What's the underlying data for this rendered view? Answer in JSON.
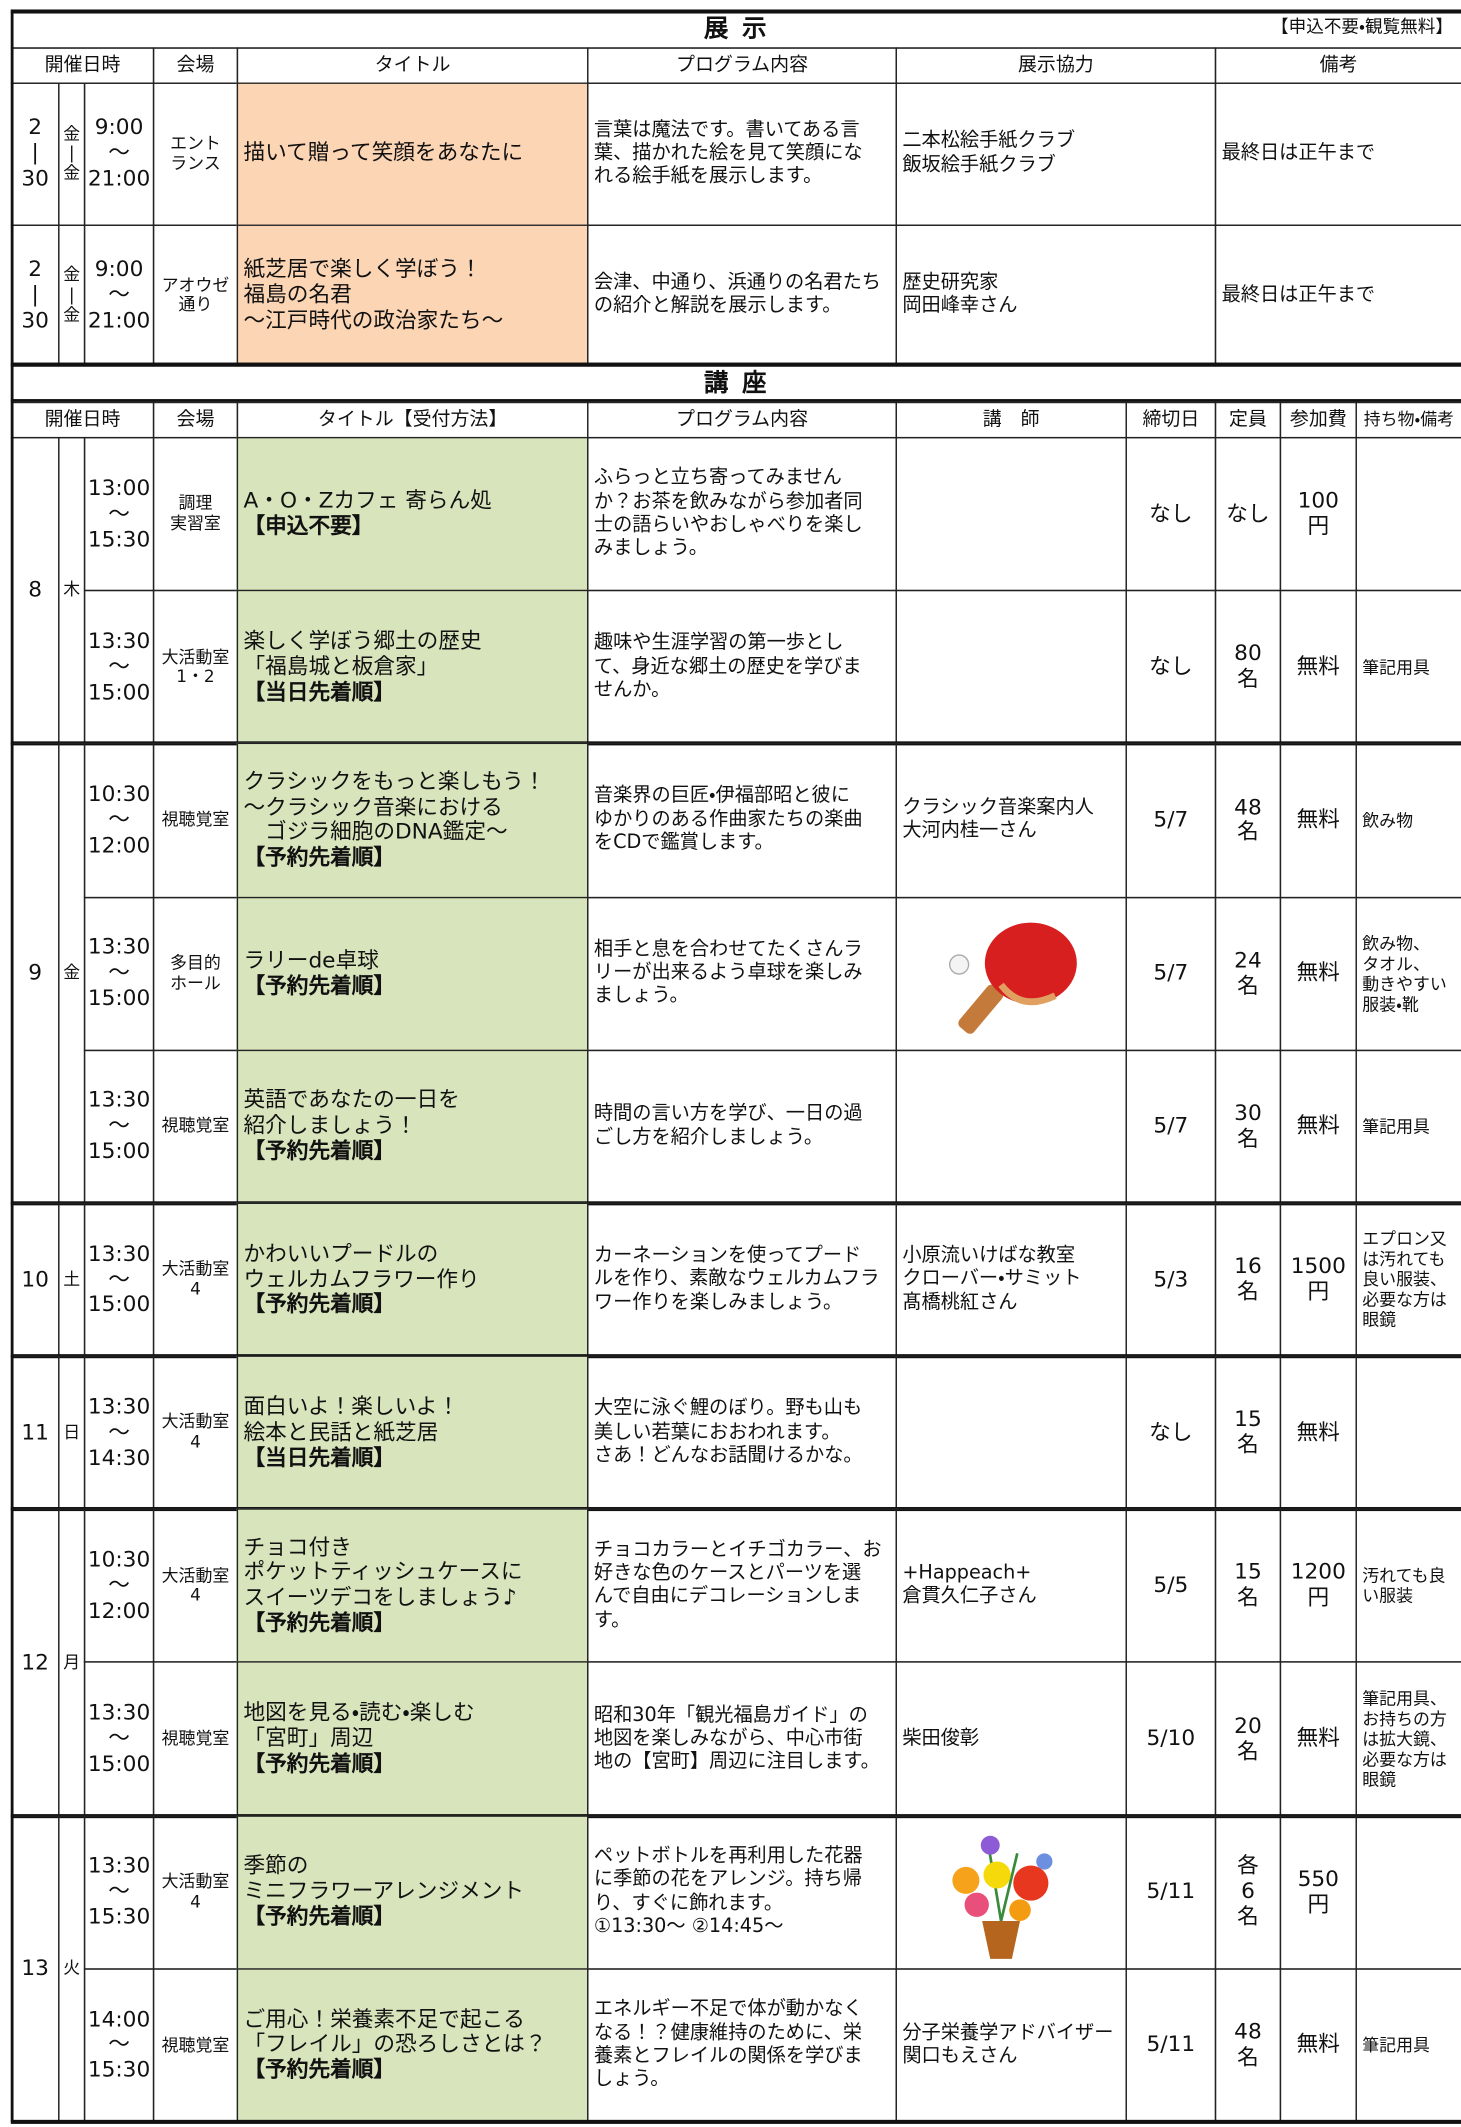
{
  "exhibition": {
    "title": "展 示",
    "note": "【申込不要・観覧無料】",
    "headers": [
      "開催日時",
      "会場",
      "タイトル",
      "プログラム内容",
      "展示協力",
      "備考"
    ],
    "rows": [
      {
        "date": [
          "2",
          "|",
          "30"
        ],
        "weekday": [
          "金",
          "|",
          "金"
        ],
        "time": [
          "9:00",
          "～",
          "21:00"
        ],
        "venue": [
          "エント",
          "ランス"
        ],
        "title": [
          "描いて贈って笑顔をあなたに"
        ],
        "content": [
          "言葉は魔法です。書いてある言",
          "葉、描かれた絵を見て笑顔にな",
          "れる絵手紙を展示します。"
        ],
        "cooperation": [
          "二本松絵手紙クラブ",
          "飯坂絵手紙クラブ"
        ],
        "remarks": "最終日は正午まで"
      },
      {
        "date": [
          "2",
          "|",
          "30"
        ],
        "weekday": [
          "金",
          "|",
          "金"
        ],
        "time": [
          "9:00",
          "～",
          "21:00"
        ],
        "venue": [
          "アオウゼ",
          "通り"
        ],
        "title": [
          "紙芝居で楽しく学ぼう！",
          "福島の名君",
          "～江戸時代の政治家たち～"
        ],
        "content": [
          "会津、中通り、浜通りの名君たち",
          "の紹介と解説を展示します。"
        ],
        "cooperation": [
          "歴史研究家",
          "岡田峰幸さん"
        ],
        "remarks": "最終日は正午まで"
      }
    ]
  },
  "lectures": {
    "title": "講 座",
    "headers": [
      "開催日時",
      "会場",
      "タイトル【受付方法】",
      "プログラム内容",
      "講　師",
      "締切日",
      "定員",
      "参加費",
      "持ち物・備考"
    ],
    "days": [
      {
        "day": "8",
        "weekday": "木",
        "sessions": [
          {
            "time": [
              "13:00",
              "～",
              "15:30"
            ],
            "venue": [
              "調理",
              "実習室"
            ],
            "title": [
              "A・O・Zカフェ 寄らん処"
            ],
            "method": "【申込不要】",
            "content": [
              "ふらっと立ち寄ってみません",
              "か？お茶を飲みながら参加者同",
              "士の語らいやおしゃべりを楽し",
              "みましょう。"
            ],
            "deadline": "なし",
            "capacity": [
              "なし"
            ],
            "fee": [
              "100",
              "円"
            ]
          },
          {
            "time": [
              "13:30",
              "～",
              "15:00"
            ],
            "venue": [
              "大活動室",
              "1・2"
            ],
            "title": [
              "楽しく学ぼう郷土の歴史",
              "「福島城と板倉家」"
            ],
            "method": "【当日先着順】",
            "content": [
              "趣味や生涯学習の第一歩とし",
              "て、身近な郷土の歴史を学びま",
              "せんか。"
            ],
            "deadline": "なし",
            "capacity": [
              "80",
              "名"
            ],
            "fee": [
              "無料"
            ],
            "items": [
              "筆記用具"
            ]
          }
        ]
      },
      {
        "day": "9",
        "weekday": "金",
        "sessions": [
          {
            "time": [
              "10:30",
              "～",
              "12:00"
            ],
            "venue": [
              "視聴覚室"
            ],
            "title": [
              "クラシックをもっと楽しもう！",
              "～クラシック音楽における",
              "　ゴジラ細胞のDNA鑑定～"
            ],
            "method": "【予約先着順】",
            "content": [
              "音楽界の巨匠・伊福部昭と彼に",
              "ゆかりのある作曲家たちの楽曲",
              "をCDで鑑賞します。"
            ],
            "instructor": [
              "クラシック音楽案内人",
              "大河内桂一さん"
            ],
            "deadline": "5/7",
            "capacity": [
              "48",
              "名"
            ],
            "fee": [
              "無料"
            ],
            "items": [
              "飲み物"
            ]
          },
          {
            "time": [
              "13:30",
              "～",
              "15:00"
            ],
            "venue": [
              "多目的",
              "ホール"
            ],
            "title": [
              "ラリーde卓球"
            ],
            "method": "【予約先着順】",
            "content": [
              "相手と息を合わせてたくさんラ",
              "リーが出来るよう卓球を楽しみ",
              "ましょう。"
            ],
            "deadline": "5/7",
            "capacity": [
              "24",
              "名"
            ],
            "fee": [
              "無料"
            ],
            "items": [
              "飲み物、",
              "タオル、",
              "動きやすい",
              "服装・靴"
            ]
          },
          {
            "time": [
              "13:30",
              "～",
              "15:00"
            ],
            "venue": [
              "視聴覚室"
            ],
            "title": [
              "英語であなたの一日を",
              "紹介しましょう！"
            ],
            "method": "【予約先着順】",
            "content": [
              "時間の言い方を学び、一日の過",
              "ごし方を紹介しましょう。"
            ],
            "deadline": "5/7",
            "capacity": [
              "30",
              "名"
            ],
            "fee": [
              "無料"
            ],
            "items": [
              "筆記用具"
            ]
          }
        ]
      },
      {
        "day": "10",
        "weekday": "土",
        "sessions": [
          {
            "time": [
              "13:30",
              "～",
              "15:00"
            ],
            "venue": [
              "大活動室",
              "4"
            ],
            "title": [
              "かわいいプードルの",
              "ウェルカムフラワー作り"
            ],
            "method": "【予約先着順】",
            "content": [
              "カーネーションを使ってプード",
              "ルを作り、素敵なウェルカムフラ",
              "ワー作りを楽しみましょう。"
            ],
            "instructor": [
              "小原流いけばな教室",
              "クローバー・サミット",
              "髙橋桃紅さん"
            ],
            "deadline": "5/3",
            "capacity": [
              "16",
              "名"
            ],
            "fee": [
              "1500",
              "円"
            ],
            "items": [
              "エプロン又",
              "は汚れても",
              "良い服装、",
              "必要な方は",
              "眼鏡"
            ]
          }
        ]
      },
      {
        "day": "11",
        "weekday": "日",
        "sessions": [
          {
            "time": [
              "13:30",
              "～",
              "14:30"
            ],
            "venue": [
              "大活動室",
              "4"
            ],
            "title": [
              "面白いよ！楽しいよ！",
              "絵本と民話と紙芝居"
            ],
            "method": "【当日先着順】",
            "content": [
              "大空に泳ぐ鯉のぼり。野も山も",
              "美しい若葉におおわれます。",
              "さあ！どんなお話聞けるかな。"
            ],
            "deadline": "なし",
            "capacity": [
              "15",
              "名"
            ],
            "fee": [
              "無料"
            ]
          }
        ]
      },
      {
        "day": "12",
        "weekday": "月",
        "sessions": [
          {
            "time": [
              "10:30",
              "～",
              "12:00"
            ],
            "venue": [
              "大活動室",
              "4"
            ],
            "title": [
              "チョコ付き",
              "ポケットティッシュケースに",
              "スイーツデコをしましょう♪"
            ],
            "method": "【予約先着順】",
            "content": [
              "チョコカラーとイチゴカラー、お",
              "好きな色のケースとパーツを選",
              "んで自由にデコレーションしま",
              "す。"
            ],
            "instructor": [
              "+Happeach+",
              "倉貫久仁子さん"
            ],
            "deadline": "5/5",
            "capacity": [
              "15",
              "名"
            ],
            "fee": [
              "1200",
              "円"
            ],
            "items": [
              "汚れても良",
              "い服装"
            ]
          },
          {
            "time": [
              "13:30",
              "～",
              "15:00"
            ],
            "venue": [
              "視聴覚室"
            ],
            "title": [
              "地図を見る・読む・楽しむ",
              "「宮町」周辺"
            ],
            "method": "【予約先着順】",
            "content": [
              "昭和30年「観光福島ガイド」の",
              "地図を楽しみながら、中心市街",
              "地の【宮町】周辺に注目します。"
            ],
            "instructor": [
              "柴田俊彰"
            ],
            "deadline": "5/10",
            "capacity": [
              "20",
              "名"
            ],
            "fee": [
              "無料"
            ],
            "items": [
              "筆記用具、",
              "お持ちの方",
              "は拡大鏡、",
              "必要な方は",
              "眼鏡"
            ]
          }
        ]
      },
      {
        "day": "13",
        "weekday": "火",
        "sessions": [
          {
            "time": [
              "13:30",
              "～",
              "15:30"
            ],
            "venue": [
              "大活動室",
              "4"
            ],
            "title": [
              "季節の",
              "ミニフラワーアレンジメント"
            ],
            "method": "【予約先着順】",
            "content": [
              "ペットボトルを再利用した花器",
              "に季節の花をアレンジ。持ち帰",
              "り、すぐに飾れます。",
              "①13:30～ ②14:45～"
            ],
            "deadline": "5/11",
            "capacity": [
              "各",
              "6",
              "名"
            ],
            "fee": [
              "550",
              "円"
            ]
          },
          {
            "time": [
              "14:00",
              "～",
              "15:30"
            ],
            "venue": [
              "視聴覚室"
            ],
            "title": [
              "ご用心！栄養素不足で起こる",
              "「フレイル」の恐ろしさとは？"
            ],
            "method": "【予約先着順】",
            "content": [
              "エネルギー不足で体が動かなく",
              "なる！？健康維持のために、栄",
              "養素とフレイルの関係を学びま",
              "しょう。"
            ],
            "instructor": [
              "分子栄養学アドバイザー",
              "関口もえさん"
            ],
            "deadline": "5/11",
            "capacity": [
              "48",
              "名"
            ],
            "fee": [
              "無料"
            ],
            "items": [
              "筆記用具"
            ]
          }
        ]
      }
    ]
  }
}
